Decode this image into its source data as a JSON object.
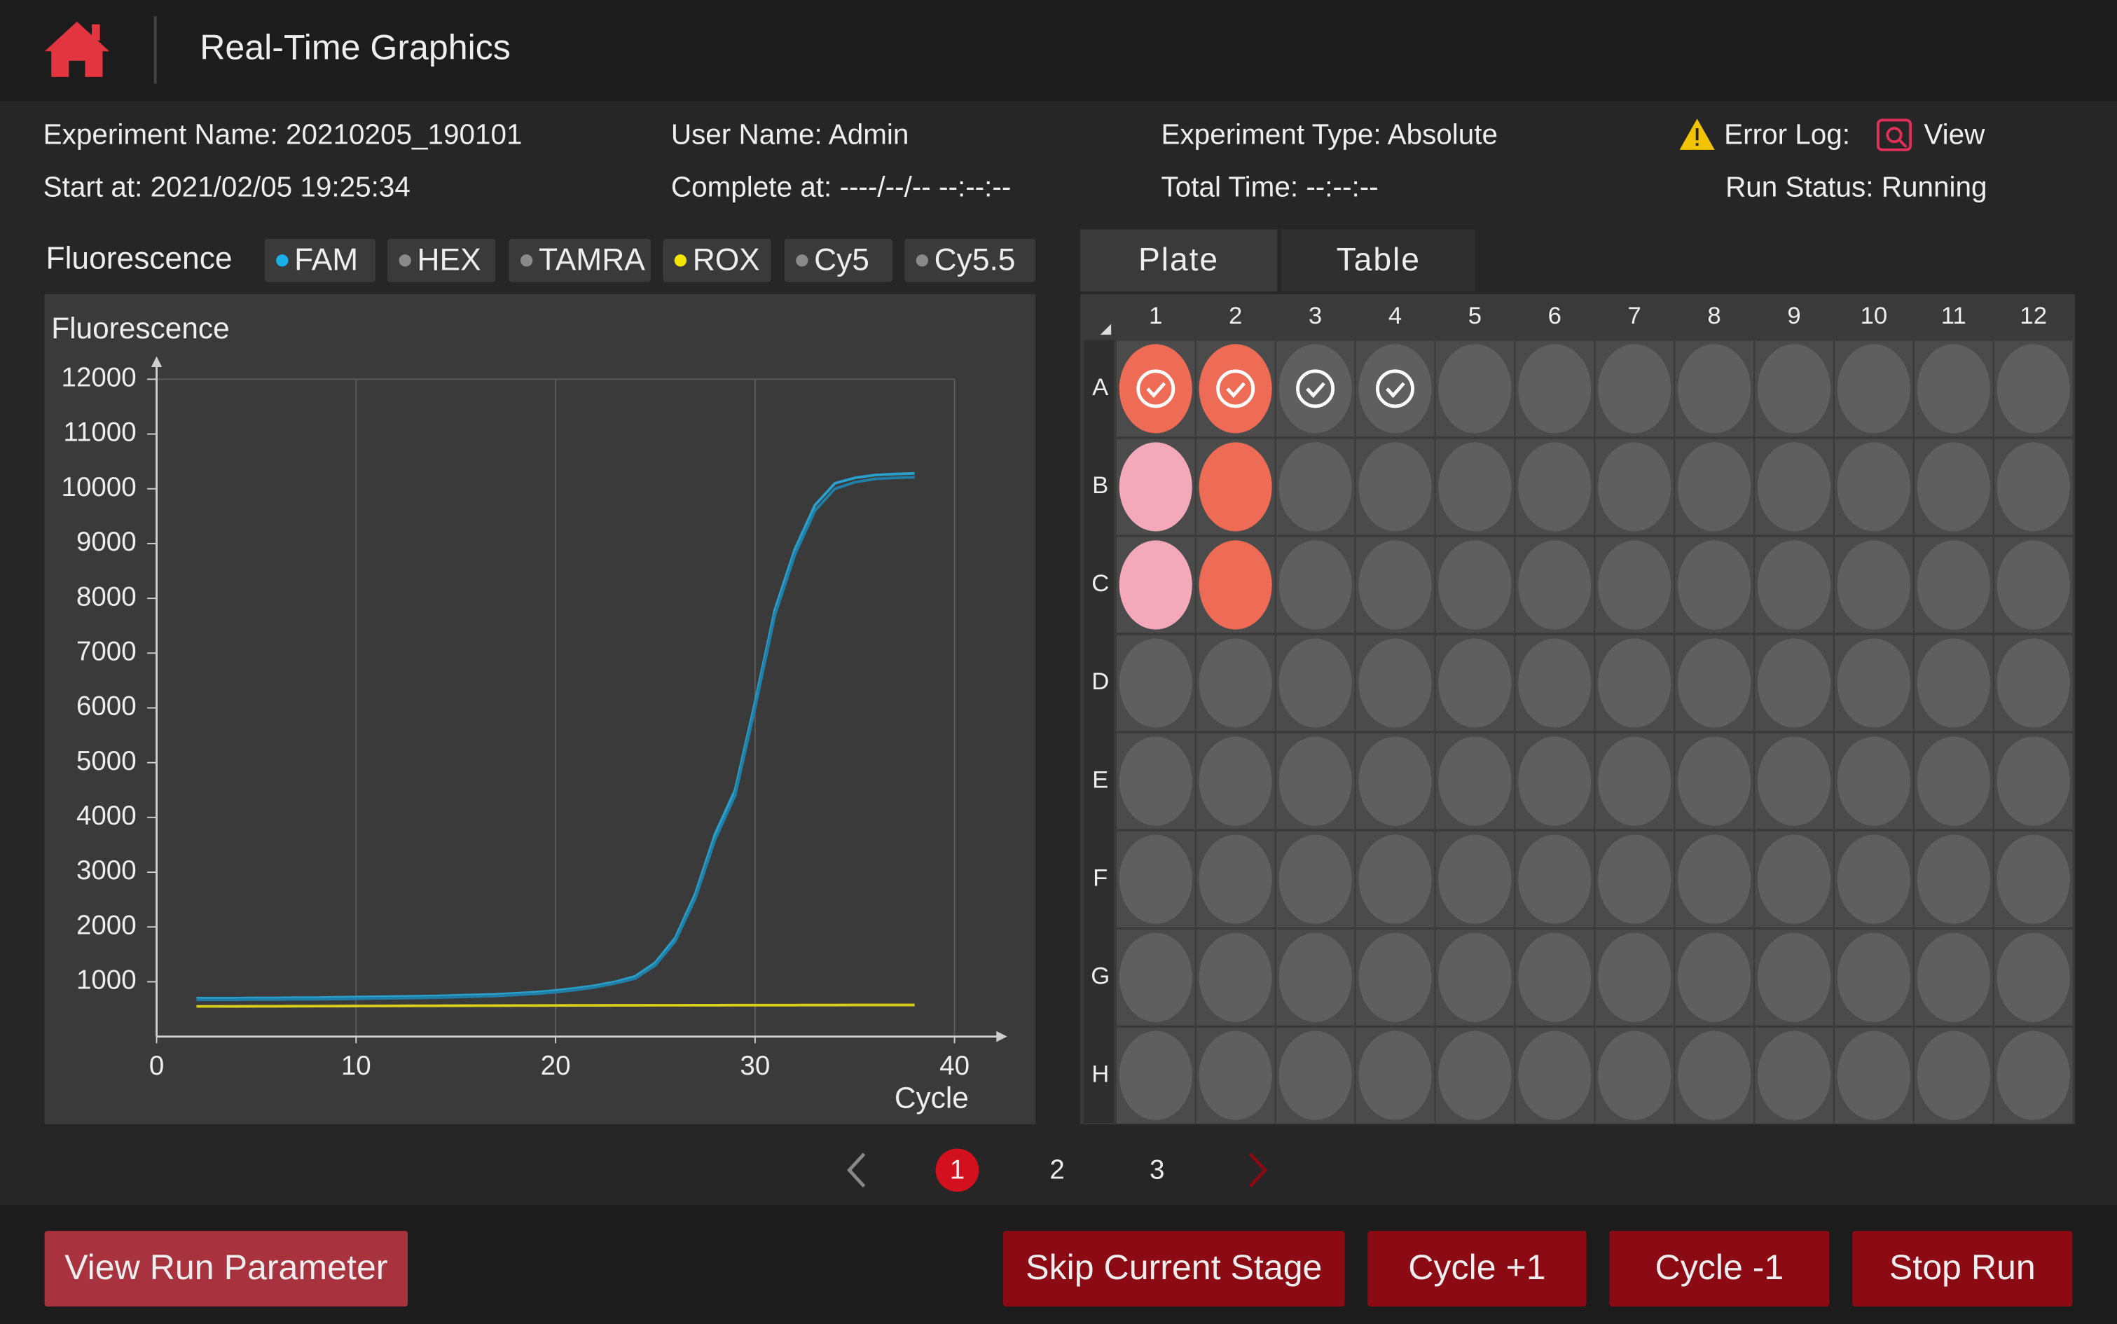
{
  "header": {
    "title": "Real-Time Graphics"
  },
  "info": {
    "experiment_name": "Experiment Name: 20210205_190101",
    "user_name": "User Name: Admin",
    "experiment_type": "Experiment Type: Absolute",
    "error_log": "Error Log:",
    "error_log_link": "View",
    "start_at": "Start at:  2021/02/05 19:25:34",
    "complete_at": "Complete at: ----/--/-- --:--:--",
    "total_time": "Total Time: --:--:--",
    "run_status": "Run Status: Running"
  },
  "fluorescence_label": "Fluorescence",
  "chart_data": {
    "type": "line",
    "ylabel": "Fluorescence",
    "xlabel": "Cycle",
    "legend": [
      {
        "name": "FAM",
        "color": "#1ab0e8"
      },
      {
        "name": "HEX",
        "color": "#8a8a8a"
      },
      {
        "name": "TAMRA",
        "color": "#8a8a8a"
      },
      {
        "name": "ROX",
        "color": "#f2e600"
      },
      {
        "name": "Cy5",
        "color": "#8a8a8a"
      },
      {
        "name": "Cy5.5",
        "color": "#8a8a8a"
      }
    ],
    "x": [
      2,
      3,
      4,
      5,
      6,
      7,
      8,
      9,
      10,
      11,
      12,
      13,
      14,
      15,
      16,
      17,
      18,
      19,
      20,
      21,
      22,
      23,
      24,
      25,
      26,
      27,
      28,
      29,
      30,
      31,
      32,
      33,
      34,
      35,
      36,
      37,
      38
    ],
    "series": [
      {
        "color": "#2a9fc9",
        "values": [
          700,
          700,
          700,
          705,
          705,
          710,
          710,
          715,
          720,
          725,
          730,
          735,
          740,
          750,
          760,
          770,
          790,
          810,
          840,
          880,
          930,
          1000,
          1100,
          1350,
          1800,
          2600,
          3700,
          4500,
          6100,
          7800,
          8900,
          9700,
          10100,
          10200,
          10250,
          10270,
          10280
        ]
      },
      {
        "color": "#1f7fa6",
        "values": [
          670,
          670,
          670,
          675,
          675,
          680,
          680,
          685,
          690,
          695,
          700,
          705,
          710,
          720,
          730,
          740,
          760,
          780,
          810,
          850,
          900,
          970,
          1060,
          1300,
          1740,
          2520,
          3600,
          4400,
          6000,
          7700,
          8800,
          9600,
          10000,
          10120,
          10180,
          10200,
          10210
        ]
      },
      {
        "color": "#d8cf1a",
        "values": [
          550,
          550,
          551,
          552,
          553,
          554,
          555,
          556,
          557,
          558,
          559,
          560,
          561,
          562,
          563,
          564,
          565,
          566,
          567,
          568,
          569,
          570,
          570,
          571,
          571,
          572,
          572,
          573,
          573,
          574,
          574,
          575,
          575,
          576,
          576,
          577,
          577
        ]
      }
    ],
    "xlim": [
      0,
      40
    ],
    "xticks": [
      0,
      10,
      20,
      30,
      40
    ],
    "ylim": [
      0,
      12000
    ],
    "yticks": [
      1000,
      2000,
      3000,
      4000,
      5000,
      6000,
      7000,
      8000,
      9000,
      10000,
      11000,
      12000
    ],
    "grid": true
  },
  "plate": {
    "tabs": [
      "Plate",
      "Table"
    ],
    "columns": [
      "1",
      "2",
      "3",
      "4",
      "5",
      "6",
      "7",
      "8",
      "9",
      "10",
      "11",
      "12"
    ],
    "rows": [
      "A",
      "B",
      "C",
      "D",
      "E",
      "F",
      "G",
      "H"
    ],
    "wells": [
      [
        {
          "color": "#ee6b55",
          "checked": true
        },
        {
          "color": "#ee6b55",
          "checked": true
        },
        {
          "color": "#5f5f5f",
          "checked": true
        },
        {
          "color": "#5f5f5f",
          "checked": true
        },
        "#5f5f5f",
        "#5f5f5f",
        "#5f5f5f",
        "#5f5f5f",
        "#5f5f5f",
        "#5f5f5f",
        "#5f5f5f",
        "#5f5f5f"
      ],
      [
        "#f4a9bb",
        "#ee6b55",
        "#5f5f5f",
        "#5f5f5f",
        "#5f5f5f",
        "#5f5f5f",
        "#5f5f5f",
        "#5f5f5f",
        "#5f5f5f",
        "#5f5f5f",
        "#5f5f5f",
        "#5f5f5f"
      ],
      [
        "#f4a9bb",
        "#ee6b55",
        "#5f5f5f",
        "#5f5f5f",
        "#5f5f5f",
        "#5f5f5f",
        "#5f5f5f",
        "#5f5f5f",
        "#5f5f5f",
        "#5f5f5f",
        "#5f5f5f",
        "#5f5f5f"
      ],
      [
        "#5f5f5f",
        "#5f5f5f",
        "#5f5f5f",
        "#5f5f5f",
        "#5f5f5f",
        "#5f5f5f",
        "#5f5f5f",
        "#5f5f5f",
        "#5f5f5f",
        "#5f5f5f",
        "#5f5f5f",
        "#5f5f5f"
      ],
      [
        "#5f5f5f",
        "#5f5f5f",
        "#5f5f5f",
        "#5f5f5f",
        "#5f5f5f",
        "#5f5f5f",
        "#5f5f5f",
        "#5f5f5f",
        "#5f5f5f",
        "#5f5f5f",
        "#5f5f5f",
        "#5f5f5f"
      ],
      [
        "#5f5f5f",
        "#5f5f5f",
        "#5f5f5f",
        "#5f5f5f",
        "#5f5f5f",
        "#5f5f5f",
        "#5f5f5f",
        "#5f5f5f",
        "#5f5f5f",
        "#5f5f5f",
        "#5f5f5f",
        "#5f5f5f"
      ],
      [
        "#5f5f5f",
        "#5f5f5f",
        "#5f5f5f",
        "#5f5f5f",
        "#5f5f5f",
        "#5f5f5f",
        "#5f5f5f",
        "#5f5f5f",
        "#5f5f5f",
        "#5f5f5f",
        "#5f5f5f",
        "#5f5f5f"
      ],
      [
        "#5f5f5f",
        "#5f5f5f",
        "#5f5f5f",
        "#5f5f5f",
        "#5f5f5f",
        "#5f5f5f",
        "#5f5f5f",
        "#5f5f5f",
        "#5f5f5f",
        "#5f5f5f",
        "#5f5f5f",
        "#5f5f5f"
      ]
    ]
  },
  "pagination": [
    "1",
    "2",
    "3"
  ],
  "buttons": [
    "View Run Parameter",
    "Skip Current Stage",
    "Cycle +1",
    "Cycle -1",
    "Stop Run"
  ]
}
